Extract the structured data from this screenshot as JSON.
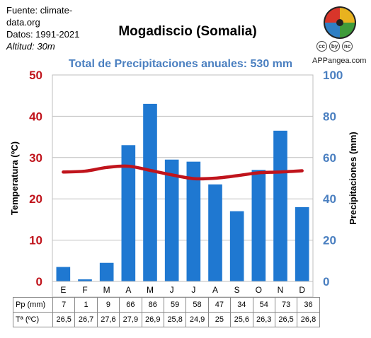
{
  "source": {
    "line1": "Fuente: climate-data.org",
    "line2": "Datos: 1991-2021",
    "line3": "Altitud: 30m"
  },
  "title": "Mogadiscio (Somalia)",
  "subtitle": "Total de Precipitaciones anuales: 530 mm",
  "brand": "APPangea.com",
  "license_icons": [
    "cc",
    "by",
    "nc"
  ],
  "colors": {
    "bar": "#1f78d1",
    "line": "#c0141c",
    "left_axis": "#c0141c",
    "right_axis": "#4a7fc0"
  },
  "table": {
    "precip_label": "Pp (mm)",
    "temp_label": "Tª (ºC)",
    "precip": [
      "7",
      "1",
      "9",
      "66",
      "86",
      "59",
      "58",
      "47",
      "34",
      "54",
      "73",
      "36"
    ],
    "temp": [
      "26,5",
      "26,7",
      "27,6",
      "27,9",
      "26,9",
      "25,8",
      "24,9",
      "25",
      "25,6",
      "26,3",
      "26,5",
      "26,8"
    ]
  },
  "chart_data": {
    "type": "bar",
    "title": "Mogadiscio (Somalia)",
    "subtitle": "Total de Precipitaciones anuales: 530 mm",
    "categories": [
      "E",
      "F",
      "M",
      "A",
      "M",
      "J",
      "J",
      "A",
      "S",
      "O",
      "N",
      "D"
    ],
    "series": [
      {
        "name": "Precipitaciones (mm)",
        "type": "bar",
        "axis": "right",
        "values": [
          7,
          1,
          9,
          66,
          86,
          59,
          58,
          47,
          34,
          54,
          73,
          36
        ]
      },
      {
        "name": "Temperatura (ºC)",
        "type": "line",
        "axis": "left",
        "values": [
          26.5,
          26.7,
          27.6,
          27.9,
          26.9,
          25.8,
          24.9,
          25,
          25.6,
          26.3,
          26.5,
          26.8
        ]
      }
    ],
    "left_axis": {
      "label": "Temperatura (ºC)",
      "range": [
        0,
        50
      ],
      "ticks": [
        0,
        10,
        20,
        30,
        40,
        50
      ]
    },
    "right_axis": {
      "label": "Precipitaciones (mm)",
      "range": [
        0,
        100
      ],
      "ticks": [
        0,
        20,
        40,
        60,
        80,
        100
      ]
    },
    "grid": "horizontal"
  }
}
